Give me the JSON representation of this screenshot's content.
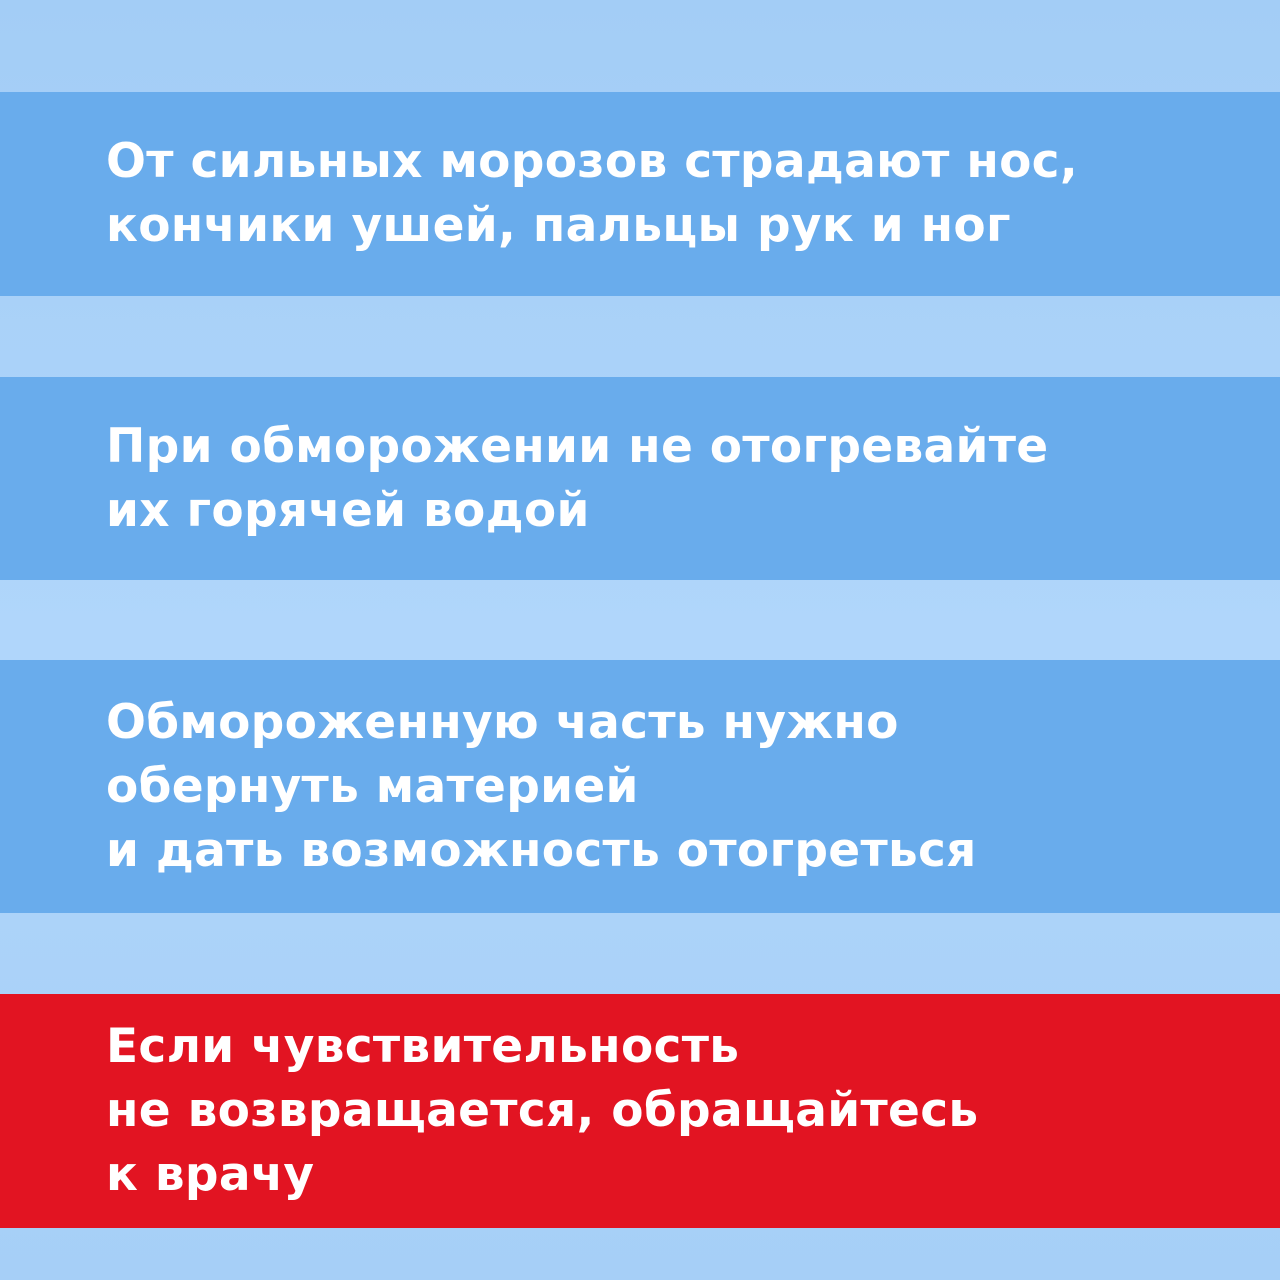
{
  "colors": {
    "background": "#a8d1f8",
    "info_band": "#69acec",
    "warning_band": "#e21422",
    "text": "#ffffff"
  },
  "blocks": [
    {
      "lines": [
        "От сильных морозов страдают нос,",
        "кончики ушей, пальцы рук и ног"
      ]
    },
    {
      "lines": [
        "При обморожении не отогревайте",
        "их горячей водой"
      ]
    },
    {
      "lines": [
        "Обмороженную часть нужно",
        "обернуть материей",
        "и дать возможность отогреться"
      ]
    },
    {
      "lines": [
        "Если чувствительность",
        "не возвращается, обращайтесь",
        "к врачу"
      ]
    }
  ]
}
